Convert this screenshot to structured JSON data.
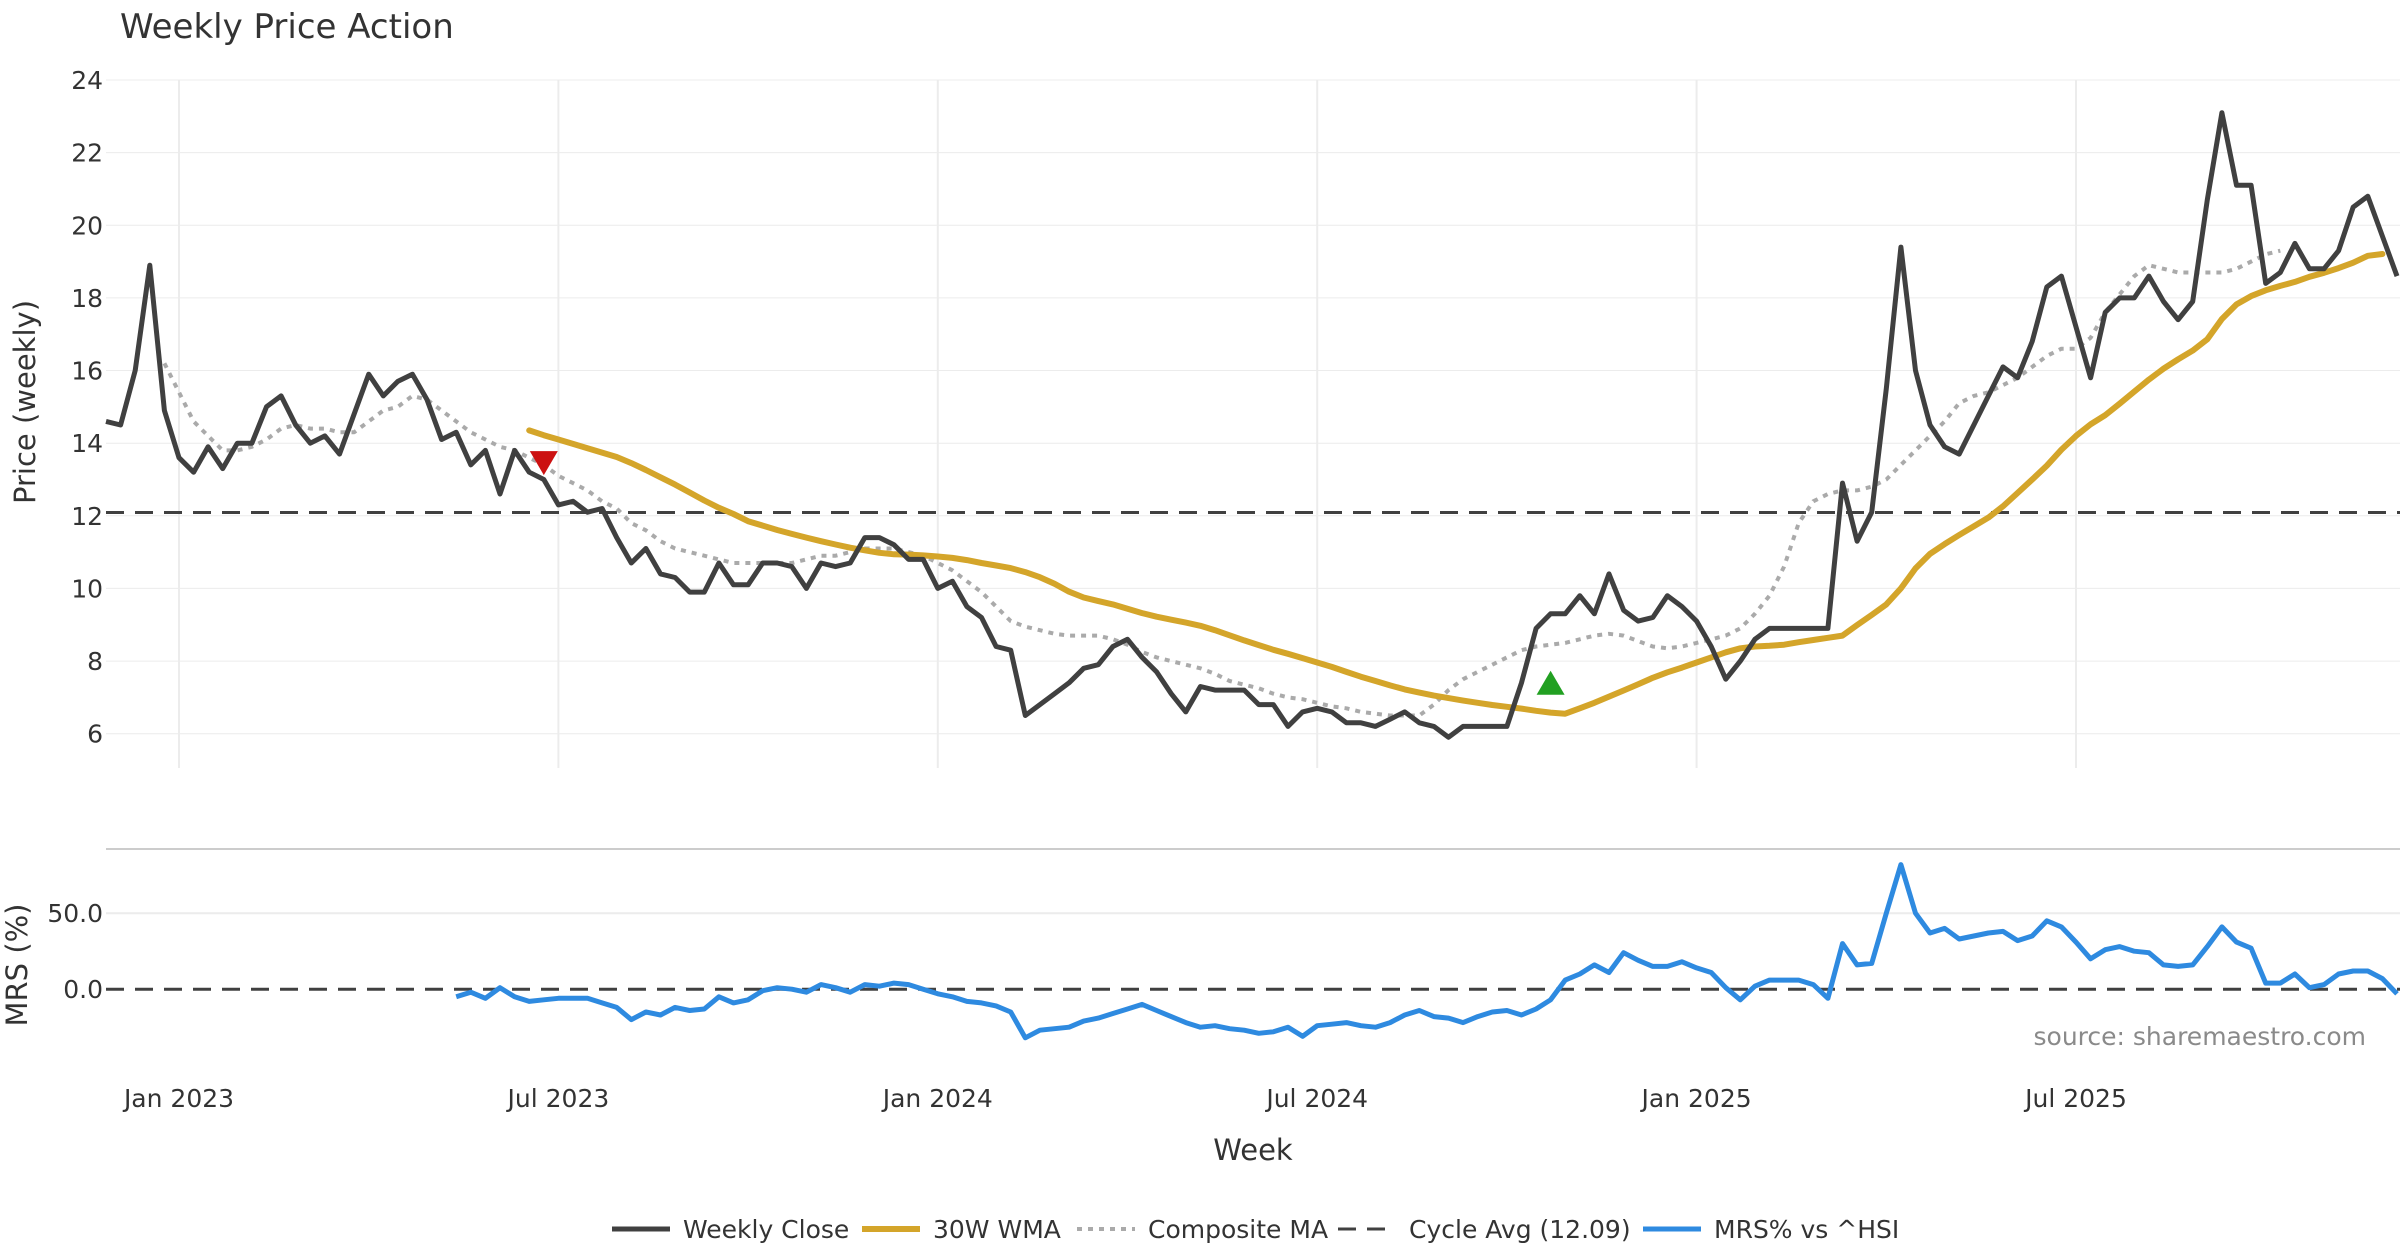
{
  "chart_data": {
    "type": "line",
    "title": "Weekly Price Action",
    "xlabel": "Week",
    "colors": {
      "close": "#404040",
      "wma": "#d4a52a",
      "composite": "#aaaaaa",
      "cycle": "#404040",
      "mrs": "#2e8ae0",
      "sell": "#cc1111",
      "buy": "#22a022",
      "grid": "#ececec",
      "separator": "#cccccc"
    },
    "x_ticks": [
      "Jan 2023",
      "Jul 2023",
      "Jan 2024",
      "Jul 2024",
      "Jan 2025",
      "Jul 2025"
    ],
    "price_panel": {
      "ylabel": "Price (weekly)",
      "ylim": [
        5,
        24
      ],
      "yticks": [
        "6",
        "8",
        "10",
        "12",
        "14",
        "16",
        "18",
        "20",
        "22",
        "24"
      ],
      "cycle_avg": 12.09,
      "series": [
        {
          "name": "Weekly Close",
          "key": "close",
          "values": [
            14.6,
            14.5,
            16.0,
            18.9,
            14.9,
            13.6,
            13.2,
            13.9,
            13.3,
            14.0,
            14.0,
            15.0,
            15.3,
            14.5,
            14.0,
            14.2,
            13.7,
            14.8,
            15.9,
            15.3,
            15.7,
            15.9,
            15.2,
            14.1,
            14.3,
            13.4,
            13.8,
            12.6,
            13.8,
            13.2,
            13.0,
            12.3,
            12.4,
            12.1,
            12.2,
            11.4,
            10.7,
            11.1,
            10.4,
            10.3,
            9.9,
            9.9,
            10.7,
            10.1,
            10.1,
            10.7,
            10.7,
            10.6,
            10.0,
            10.7,
            10.6,
            10.7,
            11.4,
            11.4,
            11.2,
            10.8,
            10.8,
            10.0,
            10.2,
            9.5,
            9.2,
            8.4,
            8.3,
            6.5,
            6.8,
            7.1,
            7.4,
            7.8,
            7.9,
            8.4,
            8.6,
            8.1,
            7.7,
            7.1,
            6.6,
            7.3,
            7.2,
            7.2,
            7.2,
            6.8,
            6.8,
            6.2,
            6.6,
            6.7,
            6.6,
            6.3,
            6.3,
            6.2,
            6.4,
            6.6,
            6.3,
            6.2,
            5.9,
            6.2,
            6.2,
            6.2,
            6.2,
            7.4,
            8.9,
            9.3,
            9.3,
            9.8,
            9.3,
            10.4,
            9.4,
            9.1,
            9.2,
            9.8,
            9.5,
            9.1,
            8.4,
            7.5,
            8.0,
            8.6,
            8.9,
            8.9,
            8.9,
            8.9,
            8.9,
            12.9,
            11.3,
            12.1,
            15.5,
            19.4,
            16.0,
            14.5,
            13.9,
            13.7,
            14.5,
            15.3,
            16.1,
            15.8,
            16.8,
            18.3,
            18.6,
            17.2,
            15.8,
            17.6,
            18.0,
            18.0,
            18.6,
            17.9,
            17.4,
            17.9,
            20.7,
            23.1,
            21.1,
            21.1,
            18.4,
            18.7,
            19.5,
            18.8,
            18.8,
            19.3,
            20.5,
            20.8,
            19.7,
            18.6
          ]
        },
        {
          "name": "30W WMA",
          "key": "wma",
          "start_index": 29,
          "values": [
            14.35,
            14.22,
            14.1,
            13.98,
            13.86,
            13.74,
            13.62,
            13.45,
            13.26,
            13.06,
            12.86,
            12.64,
            12.42,
            12.22,
            12.05,
            11.85,
            11.73,
            11.61,
            11.5,
            11.4,
            11.3,
            11.21,
            11.12,
            11.05,
            10.98,
            10.94,
            10.93,
            10.91,
            10.88,
            10.84,
            10.78,
            10.7,
            10.63,
            10.56,
            10.45,
            10.31,
            10.13,
            9.91,
            9.75,
            9.65,
            9.56,
            9.44,
            9.32,
            9.22,
            9.14,
            9.06,
            8.97,
            8.85,
            8.71,
            8.57,
            8.44,
            8.31,
            8.2,
            8.08,
            7.96,
            7.84,
            7.7,
            7.57,
            7.45,
            7.33,
            7.22,
            7.13,
            7.05,
            6.98,
            6.91,
            6.85,
            6.79,
            6.74,
            6.69,
            6.63,
            6.58,
            6.55,
            6.7,
            6.85,
            7.02,
            7.19,
            7.36,
            7.54,
            7.69,
            7.82,
            7.96,
            8.1,
            8.24,
            8.35,
            8.4,
            8.42,
            8.45,
            8.52,
            8.58,
            8.64,
            8.7,
            8.99,
            9.27,
            9.56,
            10.0,
            10.55,
            10.95,
            11.22,
            11.47,
            11.71,
            11.95,
            12.26,
            12.63,
            13.0,
            13.38,
            13.82,
            14.2,
            14.52,
            14.77,
            15.09,
            15.42,
            15.75,
            16.05,
            16.31,
            16.55,
            16.86,
            17.42,
            17.82,
            18.05,
            18.21,
            18.33,
            18.44,
            18.58,
            18.69,
            18.82,
            18.97,
            19.16,
            19.21
          ]
        },
        {
          "name": "Composite MA",
          "key": "composite",
          "start_index": 4,
          "values": [
            16.2,
            15.4,
            14.6,
            14.2,
            13.8,
            13.8,
            13.9,
            14.1,
            14.4,
            14.5,
            14.4,
            14.4,
            14.3,
            14.3,
            14.6,
            14.9,
            15.0,
            15.3,
            15.2,
            14.9,
            14.6,
            14.3,
            14.1,
            13.9,
            13.8,
            13.6,
            13.4,
            13.1,
            12.9,
            12.7,
            12.4,
            12.2,
            11.8,
            11.6,
            11.3,
            11.1,
            11.0,
            10.9,
            10.8,
            10.7,
            10.7,
            10.7,
            10.7,
            10.7,
            10.8,
            10.9,
            10.9,
            11.0,
            11.1,
            11.1,
            11.1,
            11.0,
            10.9,
            10.7,
            10.5,
            10.2,
            9.9,
            9.5,
            9.1,
            8.95,
            8.85,
            8.75,
            8.7,
            8.7,
            8.7,
            8.6,
            8.45,
            8.25,
            8.1,
            8.0,
            7.9,
            7.8,
            7.65,
            7.45,
            7.35,
            7.25,
            7.1,
            7.0,
            6.95,
            6.85,
            6.75,
            6.7,
            6.6,
            6.55,
            6.5,
            6.5,
            6.5,
            6.8,
            7.2,
            7.5,
            7.7,
            7.9,
            8.1,
            8.3,
            8.4,
            8.45,
            8.5,
            8.6,
            8.7,
            8.75,
            8.7,
            8.55,
            8.4,
            8.35,
            8.4,
            8.5,
            8.6,
            8.7,
            8.9,
            9.3,
            9.8,
            10.6,
            11.8,
            12.4,
            12.6,
            12.7,
            12.7,
            12.8,
            13.0,
            13.4,
            13.8,
            14.2,
            14.6,
            15.1,
            15.3,
            15.4,
            15.6,
            15.8,
            16.1,
            16.4,
            16.6,
            16.6,
            16.9,
            17.6,
            18.1,
            18.6,
            18.9,
            18.8,
            18.7,
            18.7,
            18.7,
            18.7,
            18.8,
            19.0,
            19.2,
            19.3
          ]
        },
        {
          "name": "Cycle Avg (12.09)",
          "key": "cycle"
        }
      ],
      "markers": [
        {
          "type": "sell",
          "index": 30,
          "value": 13.45
        },
        {
          "type": "buy",
          "index": 99,
          "value": 7.4
        }
      ]
    },
    "mrs_panel": {
      "ylabel": "MRS (%)",
      "ylim": [
        -40,
        85
      ],
      "yticks": [
        "0.0",
        "50.0"
      ],
      "series": [
        {
          "name": "MRS% vs ^HSI",
          "key": "mrs",
          "start_index": 24,
          "values": [
            -5,
            -2,
            -6,
            1,
            -5,
            -8,
            -7,
            -6,
            -6,
            -6,
            -9,
            -12,
            -20,
            -15,
            -17,
            -12,
            -14,
            -13,
            -5,
            -9,
            -7,
            -1,
            1,
            0,
            -2,
            3,
            1,
            -2,
            3,
            2,
            4,
            3,
            0,
            -3,
            -5,
            -8,
            -9,
            -11,
            -15,
            -32,
            -27,
            -26,
            -25,
            -21,
            -19,
            -16,
            -13,
            -10,
            -14,
            -18,
            -22,
            -25,
            -24,
            -26,
            -27,
            -29,
            -28,
            -25,
            -31,
            -24,
            -23,
            -22,
            -24,
            -25,
            -22,
            -17,
            -14,
            -18,
            -19,
            -22,
            -18,
            -15,
            -14,
            -17,
            -13,
            -7,
            6,
            10,
            16,
            11,
            24,
            19,
            15,
            15,
            18,
            14,
            11,
            1,
            -7,
            2,
            6,
            6,
            6,
            3,
            -6,
            30,
            16,
            17,
            50,
            82,
            50,
            37,
            40,
            33,
            35,
            37,
            38,
            32,
            35,
            45,
            41,
            31,
            20,
            26,
            28,
            25,
            24,
            16,
            15,
            16,
            28,
            41,
            31,
            27,
            4,
            4,
            10,
            1,
            3,
            10,
            12,
            12,
            7,
            -3
          ]
        }
      ]
    },
    "legend": [
      "Weekly Close",
      "30W WMA",
      "Composite MA",
      "Cycle Avg (12.09)",
      "MRS% vs ^HSI"
    ],
    "source": "source: sharemaestro.com"
  }
}
